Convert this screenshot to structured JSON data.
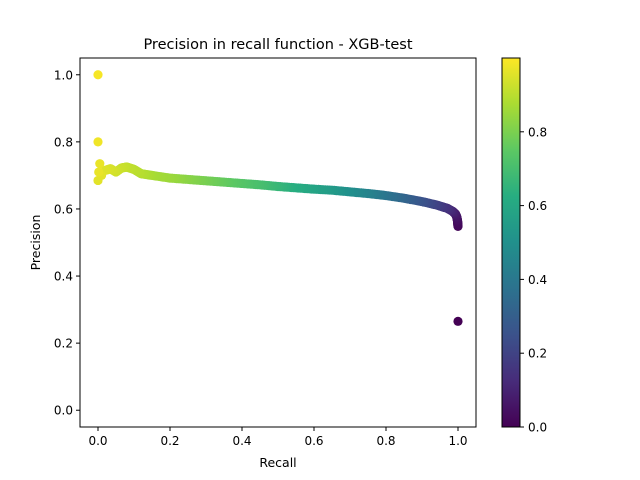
{
  "chart_data": {
    "type": "scatter",
    "title": "Precision in recall function - XGB-test",
    "xlabel": "Recall",
    "ylabel": "Precision",
    "xlim": [
      -0.05,
      1.05
    ],
    "ylim": [
      -0.05,
      1.05
    ],
    "xticks": [
      0.0,
      0.2,
      0.4,
      0.6,
      0.8,
      1.0
    ],
    "xtick_labels": [
      "0.0",
      "0.2",
      "0.4",
      "0.6",
      "0.8",
      "1.0"
    ],
    "yticks": [
      0.0,
      0.2,
      0.4,
      0.6,
      0.8,
      1.0
    ],
    "ytick_labels": [
      "0.0",
      "0.2",
      "0.4",
      "0.6",
      "0.8",
      "1.0"
    ],
    "grid": false,
    "colormap": "viridis",
    "colorbar": {
      "range": [
        0.0,
        1.0
      ],
      "ticks": [
        0.0,
        0.2,
        0.4,
        0.6,
        0.8
      ],
      "tick_labels": [
        "0.0",
        "0.2",
        "0.4",
        "0.6",
        "0.8"
      ]
    },
    "points": [
      {
        "x": 0.0,
        "y": 1.0,
        "c": 0.99
      },
      {
        "x": 0.0,
        "y": 0.8,
        "c": 0.98
      },
      {
        "x": 0.005,
        "y": 0.735,
        "c": 0.97
      },
      {
        "x": 0.002,
        "y": 0.71,
        "c": 0.97
      },
      {
        "x": 0.0,
        "y": 0.685,
        "c": 0.96
      },
      {
        "x": 0.01,
        "y": 0.7,
        "c": 0.96
      },
      {
        "x": 0.02,
        "y": 0.715,
        "c": 0.95
      },
      {
        "x": 0.035,
        "y": 0.72,
        "c": 0.94
      },
      {
        "x": 0.05,
        "y": 0.71,
        "c": 0.93
      },
      {
        "x": 0.065,
        "y": 0.722,
        "c": 0.92
      },
      {
        "x": 0.08,
        "y": 0.725,
        "c": 0.91
      },
      {
        "x": 0.1,
        "y": 0.718,
        "c": 0.9
      },
      {
        "x": 0.12,
        "y": 0.705,
        "c": 0.89
      },
      {
        "x": 0.15,
        "y": 0.7,
        "c": 0.87
      },
      {
        "x": 0.2,
        "y": 0.692,
        "c": 0.85
      },
      {
        "x": 0.25,
        "y": 0.688,
        "c": 0.82
      },
      {
        "x": 0.3,
        "y": 0.684,
        "c": 0.79
      },
      {
        "x": 0.35,
        "y": 0.68,
        "c": 0.76
      },
      {
        "x": 0.4,
        "y": 0.676,
        "c": 0.73
      },
      {
        "x": 0.45,
        "y": 0.672,
        "c": 0.7
      },
      {
        "x": 0.5,
        "y": 0.667,
        "c": 0.66
      },
      {
        "x": 0.55,
        "y": 0.663,
        "c": 0.62
      },
      {
        "x": 0.6,
        "y": 0.659,
        "c": 0.58
      },
      {
        "x": 0.65,
        "y": 0.656,
        "c": 0.54
      },
      {
        "x": 0.7,
        "y": 0.651,
        "c": 0.49
      },
      {
        "x": 0.75,
        "y": 0.646,
        "c": 0.44
      },
      {
        "x": 0.8,
        "y": 0.64,
        "c": 0.38
      },
      {
        "x": 0.85,
        "y": 0.632,
        "c": 0.32
      },
      {
        "x": 0.9,
        "y": 0.622,
        "c": 0.25
      },
      {
        "x": 0.94,
        "y": 0.612,
        "c": 0.19
      },
      {
        "x": 0.97,
        "y": 0.602,
        "c": 0.14
      },
      {
        "x": 0.985,
        "y": 0.593,
        "c": 0.1
      },
      {
        "x": 0.993,
        "y": 0.585,
        "c": 0.07
      },
      {
        "x": 0.997,
        "y": 0.575,
        "c": 0.05
      },
      {
        "x": 0.999,
        "y": 0.562,
        "c": 0.03
      },
      {
        "x": 1.0,
        "y": 0.548,
        "c": 0.02
      },
      {
        "x": 1.0,
        "y": 0.265,
        "c": 0.0
      }
    ]
  }
}
